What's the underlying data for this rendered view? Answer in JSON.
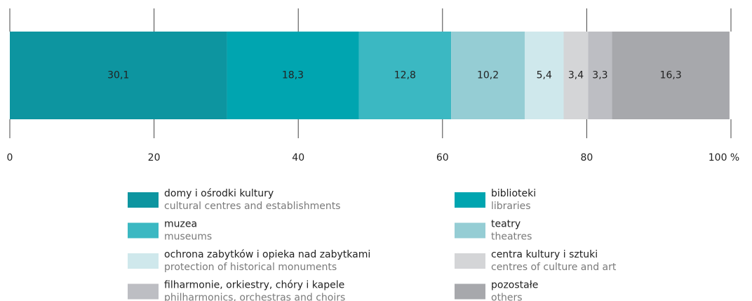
{
  "chart_data": {
    "type": "stacked-bar",
    "orientation": "horizontal",
    "categories": [
      null
    ],
    "xlim": [
      0,
      100
    ],
    "xticks": [
      0,
      20,
      40,
      60,
      80,
      {
        "value": 100,
        "label": "100 %"
      }
    ],
    "series": [
      {
        "name": "domy i ośrodki kultury",
        "name_en": "cultural centres and establishments",
        "color": "#0d95a0",
        "values": [
          30.1
        ],
        "value_labels": [
          "30,1"
        ]
      },
      {
        "name": "biblioteki",
        "name_en": "libraries",
        "color": "#00a5b0",
        "values": [
          18.3
        ],
        "value_labels": [
          "18,3"
        ]
      },
      {
        "name": "muzea",
        "name_en": "museums",
        "color": "#3bb8c2",
        "values": [
          12.8
        ],
        "value_labels": [
          "12,8"
        ]
      },
      {
        "name": "teatry",
        "name_en": "theatres",
        "color": "#95cdd4",
        "values": [
          10.2
        ],
        "value_labels": [
          "10,2"
        ]
      },
      {
        "name": "ochrona zabytków i opieka nad zabytkami",
        "name_en": "protection of historical monuments",
        "color": "#cfe8ec",
        "values": [
          5.4
        ],
        "value_labels": [
          "5,4"
        ]
      },
      {
        "name": "centra kultury i sztuki",
        "name_en": "centres of culture and art",
        "color": "#d4d5d7",
        "values": [
          3.4
        ],
        "value_labels": [
          "3,4"
        ]
      },
      {
        "name": "filharmonie, orkiestry, chóry i kapele",
        "name_en": "philharmonics, orchestras and choirs",
        "color": "#bdbec3",
        "values": [
          3.3
        ],
        "value_labels": [
          "3,3"
        ]
      },
      {
        "name": "pozostałe",
        "name_en": "others",
        "color": "#a7a8ac",
        "values": [
          16.3
        ],
        "value_labels": [
          "16,3"
        ]
      }
    ]
  }
}
